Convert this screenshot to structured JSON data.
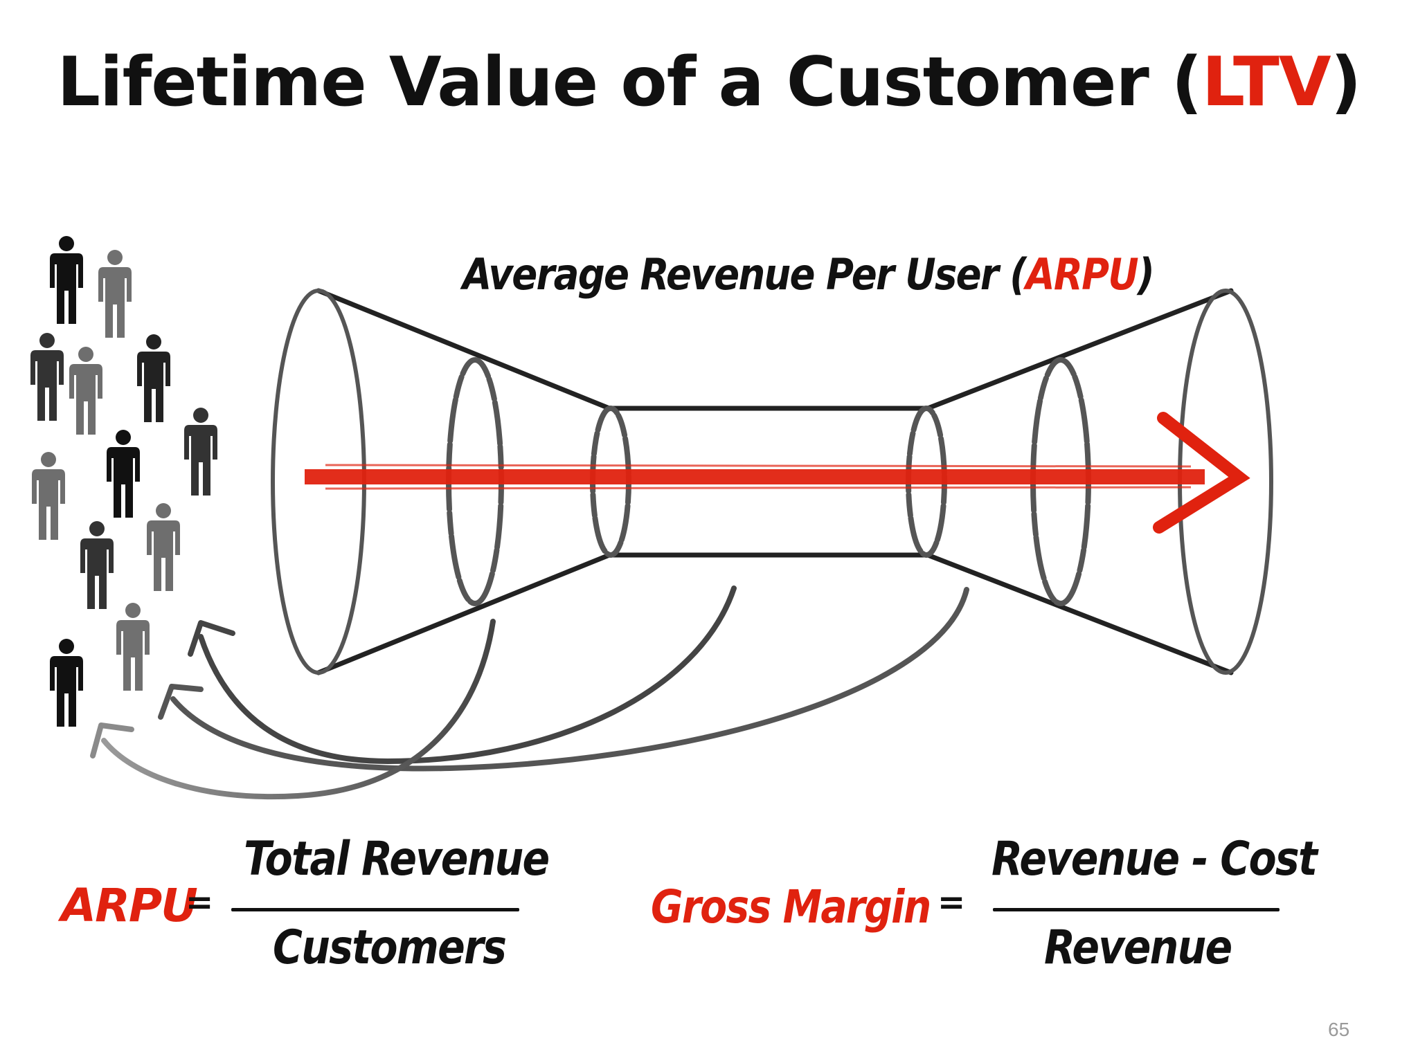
{
  "title": {
    "prefix": "Lifetime Value of a Customer (",
    "highlight": "LTV",
    "suffix": ")"
  },
  "diagram": {
    "label_prefix": "Average Revenue Per User (",
    "label_highlight": "ARPU",
    "label_suffix": ")"
  },
  "formulas": {
    "arpu": {
      "name": "ARPU",
      "equals": "=",
      "numerator": "Total Revenue",
      "denominator": "Customers"
    },
    "gross_margin": {
      "name": "Gross Margin",
      "equals": "=",
      "numerator": "Revenue - Cost",
      "denominator": "Revenue"
    }
  },
  "colors": {
    "accent": "#e0220f",
    "ink": "#111111",
    "person_dark": "#111111",
    "person_mid": "#333333",
    "person_gray": "#6e6e6e"
  },
  "icons": {
    "people": "person-icon",
    "flow_arrow": "red-arrow",
    "return_arrows": "curved-arrow"
  },
  "page_number": "65"
}
